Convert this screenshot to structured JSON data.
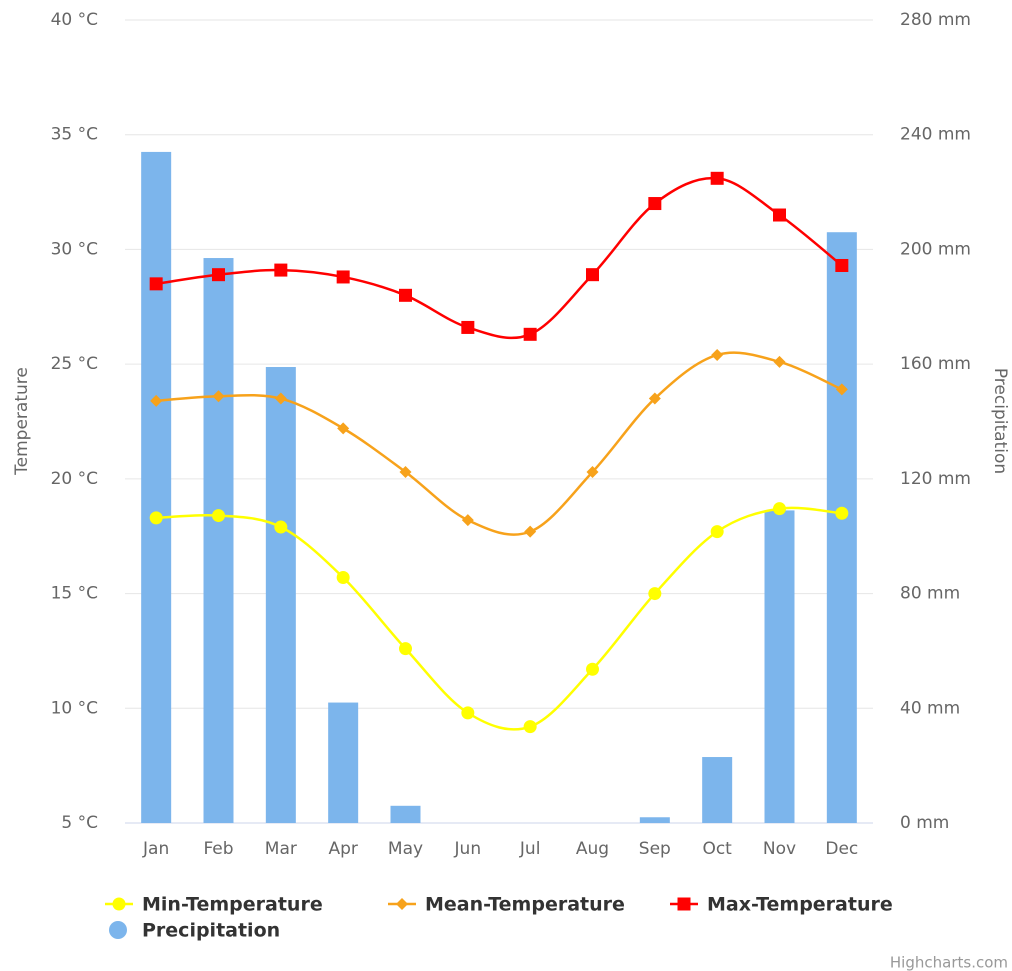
{
  "chart_data": {
    "type": "line",
    "categories": [
      "Jan",
      "Feb",
      "Mar",
      "Apr",
      "May",
      "Jun",
      "Jul",
      "Aug",
      "Sep",
      "Oct",
      "Nov",
      "Dec"
    ],
    "series": [
      {
        "name": "Min-Temperature",
        "color": "#ffff00",
        "marker": "circle",
        "values": [
          18.3,
          18.4,
          17.9,
          15.7,
          12.6,
          9.8,
          9.2,
          11.7,
          15.0,
          17.7,
          18.7,
          18.5
        ]
      },
      {
        "name": "Mean-Temperature",
        "color": "#f7a21b",
        "marker": "diamond",
        "values": [
          23.4,
          23.6,
          23.5,
          22.2,
          20.3,
          18.2,
          17.7,
          20.3,
          23.5,
          25.4,
          25.1,
          23.9
        ]
      },
      {
        "name": "Max-Temperature",
        "color": "#ff0000",
        "marker": "square",
        "values": [
          28.5,
          28.9,
          29.1,
          28.8,
          28.0,
          26.6,
          26.3,
          28.9,
          32.0,
          33.1,
          31.5,
          29.3
        ]
      },
      {
        "name": "Precipitation",
        "color": "#7cb5ec",
        "type": "column",
        "axis": "y2",
        "values": [
          234,
          197,
          159,
          42,
          6,
          0,
          0,
          0,
          2,
          23,
          109,
          206
        ]
      }
    ],
    "ylabel": "Temperature",
    "y2label": "Precipitation",
    "ylim": [
      5,
      40
    ],
    "yticks": [
      {
        "value": 5,
        "label": "5 °C"
      },
      {
        "value": 10,
        "label": "10 °C"
      },
      {
        "value": 15,
        "label": "15 °C"
      },
      {
        "value": 20,
        "label": "20 °C"
      },
      {
        "value": 25,
        "label": "25 °C"
      },
      {
        "value": 30,
        "label": "30 °C"
      },
      {
        "value": 35,
        "label": "35 °C"
      },
      {
        "value": 40,
        "label": "40 °C"
      }
    ],
    "y2lim": [
      0,
      280
    ],
    "y2ticks": [
      {
        "value": 0,
        "label": "0 mm"
      },
      {
        "value": 40,
        "label": "40 mm"
      },
      {
        "value": 80,
        "label": "80 mm"
      },
      {
        "value": 120,
        "label": "120 mm"
      },
      {
        "value": 160,
        "label": "160 mm"
      },
      {
        "value": 200,
        "label": "200 mm"
      },
      {
        "value": 240,
        "label": "240 mm"
      },
      {
        "value": 280,
        "label": "280 mm"
      }
    ],
    "grid": true,
    "legend": "bottom",
    "credits": "Highcharts.com"
  }
}
